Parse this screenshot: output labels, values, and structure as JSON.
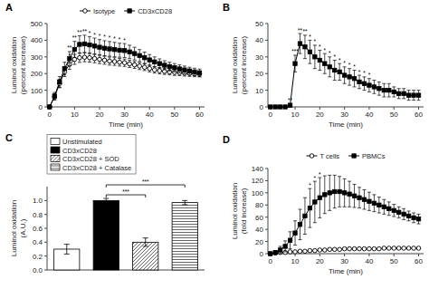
{
  "chart_data": [
    {
      "type": "line",
      "title": "A",
      "x": [
        0,
        2,
        4,
        6,
        8,
        10,
        12,
        14,
        16,
        18,
        20,
        22,
        24,
        26,
        28,
        30,
        32,
        34,
        36,
        38,
        40,
        42,
        44,
        46,
        48,
        50,
        52,
        54,
        56,
        58,
        60
      ],
      "xlim": [
        -1,
        62
      ],
      "xticks": [
        0,
        10,
        20,
        30,
        40,
        50,
        60
      ],
      "ylim": [
        0,
        500
      ],
      "yticks": [
        0,
        100,
        200,
        300,
        400,
        500
      ],
      "xlabel": "Time (min)",
      "ylabel": "Luminol oxidation\n(percent increase)",
      "grid": false,
      "legend": "top",
      "series": [
        {
          "name": "Isotype",
          "color": "black",
          "marker": "open-circle",
          "values": [
            0,
            60,
            140,
            210,
            255,
            285,
            295,
            298,
            295,
            290,
            285,
            280,
            275,
            272,
            268,
            265,
            258,
            252,
            245,
            238,
            230,
            222,
            217,
            213,
            210,
            207,
            205,
            202,
            200,
            198,
            197
          ],
          "errors": [
            0,
            18,
            25,
            28,
            30,
            30,
            28,
            27,
            26,
            25,
            25,
            24,
            24,
            23,
            23,
            22,
            22,
            21,
            21,
            20,
            20,
            19,
            19,
            18,
            18,
            18,
            17,
            17,
            17,
            17,
            17
          ],
          "annotations": [
            {
              "x": 8,
              "text": "*"
            }
          ]
        },
        {
          "name": "CD3xCD28",
          "color": "black",
          "marker": "square",
          "values": [
            0,
            65,
            150,
            230,
            290,
            345,
            375,
            378,
            372,
            365,
            358,
            352,
            348,
            344,
            340,
            338,
            330,
            320,
            308,
            295,
            282,
            270,
            260,
            250,
            242,
            235,
            228,
            222,
            216,
            210,
            205
          ],
          "errors": [
            0,
            22,
            32,
            38,
            42,
            48,
            52,
            52,
            50,
            48,
            46,
            45,
            44,
            43,
            42,
            42,
            40,
            38,
            36,
            34,
            32,
            30,
            28,
            27,
            26,
            25,
            24,
            23,
            22,
            22,
            22
          ],
          "annotations": [
            {
              "x": 8,
              "text": "**"
            },
            {
              "x": 10,
              "text": "**"
            },
            {
              "x": 12,
              "text": "**"
            },
            {
              "x": 14,
              "text": "**"
            },
            {
              "x": 16,
              "text": "*"
            },
            {
              "x": 18,
              "text": "*"
            },
            {
              "x": 20,
              "text": "*"
            },
            {
              "x": 22,
              "text": "*"
            },
            {
              "x": 24,
              "text": "*"
            },
            {
              "x": 26,
              "text": "*"
            },
            {
              "x": 28,
              "text": "*"
            },
            {
              "x": 30,
              "text": "*"
            }
          ]
        }
      ]
    },
    {
      "type": "line",
      "title": "B",
      "x": [
        0,
        2,
        4,
        6,
        8,
        10,
        12,
        14,
        16,
        18,
        20,
        22,
        24,
        26,
        28,
        30,
        32,
        34,
        36,
        38,
        40,
        42,
        44,
        46,
        48,
        50,
        52,
        54,
        56,
        58,
        60
      ],
      "xlim": [
        -1,
        62
      ],
      "xticks": [
        0,
        10,
        20,
        30,
        40,
        50,
        60
      ],
      "ylim": [
        0,
        50
      ],
      "yticks": [
        0,
        10,
        20,
        30,
        40,
        50
      ],
      "xlabel": "Time (min)",
      "ylabel": "Luminol oxidation\n(percent increase)",
      "grid": false,
      "series": [
        {
          "color": "black",
          "marker": "square",
          "values": [
            0,
            0,
            0,
            0,
            1,
            26,
            38,
            36,
            33,
            30,
            28,
            26,
            24,
            22,
            21,
            19,
            18,
            17,
            15,
            14,
            13,
            12,
            11,
            10,
            10,
            9,
            8,
            8,
            7,
            7,
            7
          ],
          "errors": [
            0,
            0,
            0,
            0,
            1,
            5,
            6,
            7,
            7,
            7,
            6,
            6,
            6,
            6,
            5,
            5,
            5,
            5,
            4,
            4,
            4,
            4,
            4,
            4,
            4,
            3,
            3,
            3,
            3,
            3,
            3
          ],
          "annotations": [
            {
              "x": 8,
              "text": "**"
            },
            {
              "x": 10,
              "text": "***"
            },
            {
              "x": 12,
              "text": "**"
            },
            {
              "x": 14,
              "text": "**"
            },
            {
              "x": 16,
              "text": "*"
            },
            {
              "x": 18,
              "text": "*"
            },
            {
              "x": 20,
              "text": "*"
            },
            {
              "x": 22,
              "text": "*"
            },
            {
              "x": 24,
              "text": "*"
            },
            {
              "x": 26,
              "text": "*"
            },
            {
              "x": 28,
              "text": "*"
            },
            {
              "x": 30,
              "text": "*"
            },
            {
              "x": 32,
              "text": "*"
            },
            {
              "x": 34,
              "text": "*"
            },
            {
              "x": 36,
              "text": "*"
            },
            {
              "x": 38,
              "text": "*"
            },
            {
              "x": 40,
              "text": "*"
            }
          ]
        }
      ]
    },
    {
      "type": "bar",
      "title": "C",
      "categories": [
        "Unstimulated",
        "CD3xCD28",
        "CD3xCD28 + SOD",
        "CD3xCD28 + Catalase"
      ],
      "values": [
        0.3,
        1.0,
        0.4,
        0.97
      ],
      "errors": [
        0.07,
        0.03,
        0.06,
        0.03
      ],
      "colors": [
        "white",
        "black",
        "white",
        "white"
      ],
      "ylim": [
        0,
        1.2
      ],
      "yticks": [
        {
          "value": 0,
          "label": "0.0"
        },
        0.2,
        0.4,
        0.6,
        0.8,
        {
          "value": 1,
          "label": "1.0"
        }
      ],
      "ylabel": "Luminol oxidation\n(A.U.)",
      "grid": false,
      "legend": "top",
      "tick_labels": "y",
      "annotations": [
        {
          "between": [
            "CD3xCD28",
            "CD3xCD28 + SOD"
          ],
          "text": "***"
        },
        {
          "between": [
            "CD3xCD28",
            "CD3xCD28 + Catalase"
          ],
          "text": "***"
        }
      ]
    },
    {
      "type": "line",
      "title": "D",
      "x": [
        0,
        2,
        4,
        6,
        8,
        10,
        12,
        14,
        16,
        18,
        20,
        22,
        24,
        26,
        28,
        30,
        32,
        34,
        36,
        38,
        40,
        42,
        44,
        46,
        48,
        50,
        52,
        54,
        56,
        58,
        60
      ],
      "xlim": [
        -1,
        62
      ],
      "xticks": [
        0,
        10,
        20,
        30,
        40,
        50,
        60
      ],
      "ylim": [
        0,
        140
      ],
      "yticks": [
        0,
        20,
        40,
        60,
        80,
        100,
        120,
        140
      ],
      "xlabel": "Time (min)",
      "ylabel": "Luminol oxidation\n(fold increase)",
      "grid": false,
      "legend": "top",
      "series": [
        {
          "name": "T cells",
          "color": "black",
          "marker": "open-circle",
          "values": [
            0,
            1,
            2,
            2,
            3,
            3,
            4,
            4,
            5,
            5,
            6,
            6,
            7,
            7,
            7,
            8,
            8,
            8,
            8,
            8,
            8,
            8,
            8,
            9,
            9,
            9,
            9,
            9,
            9,
            9,
            9
          ],
          "errors": [
            0,
            1,
            1,
            1,
            1,
            1,
            1,
            1,
            1,
            1,
            1,
            1,
            1,
            1,
            1,
            1,
            1,
            1,
            1,
            1,
            1,
            1,
            1,
            1,
            1,
            1,
            1,
            1,
            1,
            1,
            1
          ]
        },
        {
          "name": "PBMCs",
          "color": "black",
          "marker": "square",
          "values": [
            0,
            2,
            6,
            12,
            22,
            34,
            48,
            62,
            75,
            85,
            92,
            97,
            100,
            102,
            102,
            100,
            98,
            95,
            92,
            89,
            86,
            83,
            80,
            77,
            74,
            71,
            68,
            65,
            62,
            59,
            57
          ],
          "errors": [
            0,
            3,
            6,
            9,
            14,
            20,
            25,
            30,
            32,
            34,
            33,
            31,
            29,
            27,
            25,
            23,
            21,
            19,
            17,
            16,
            15,
            14,
            13,
            12,
            11,
            10,
            9,
            9,
            8,
            8,
            8
          ],
          "annotations": [
            {
              "x": 16,
              "text": "*"
            },
            {
              "x": 18,
              "text": "*"
            },
            {
              "x": 20,
              "text": "*"
            }
          ]
        }
      ]
    }
  ]
}
